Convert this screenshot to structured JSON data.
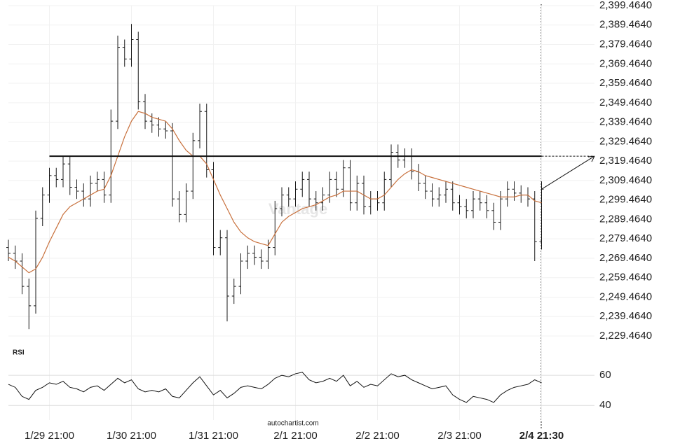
{
  "chart_data": [
    {
      "type": "ohlc",
      "categories": [
        null,
        null,
        null,
        null,
        null,
        null,
        "1/29 21:00",
        null,
        null,
        null,
        null,
        null,
        null,
        null,
        null,
        null,
        null,
        null,
        "1/30 21:00",
        null,
        null,
        null,
        null,
        null,
        null,
        null,
        null,
        null,
        null,
        null,
        "1/31 21:00",
        null,
        null,
        null,
        null,
        null,
        null,
        null,
        null,
        null,
        null,
        null,
        "2/1 21:00",
        null,
        null,
        null,
        null,
        null,
        null,
        null,
        null,
        null,
        null,
        null,
        "2/2 21:00",
        null,
        null,
        null,
        null,
        null,
        null,
        null,
        null,
        null,
        null,
        null,
        "2/3 21:00",
        null,
        null,
        null,
        null,
        null,
        null,
        null,
        null,
        null,
        null,
        null,
        "2/4 21:30"
      ],
      "open": [
        2275,
        2272,
        2268,
        2255,
        2245,
        2290,
        2302,
        2312,
        2310,
        2318,
        2306,
        2304,
        2300,
        2308,
        2310,
        2302,
        2340,
        2378,
        2372,
        2382,
        2350,
        2340,
        2338,
        2336,
        2335,
        2300,
        2292,
        2304,
        2330,
        2345,
        2315,
        2275,
        2280,
        2250,
        2255,
        2268,
        2272,
        2270,
        2268,
        2275,
        2295,
        2302,
        2300,
        2305,
        2310,
        2300,
        2298,
        2302,
        2310,
        2305,
        2316,
        2298,
        2308,
        2296,
        2300,
        2298,
        2310,
        2324,
        2320,
        2322,
        2314,
        2308,
        2304,
        2300,
        2302,
        2305,
        2298,
        2296,
        2294,
        2300,
        2298,
        2294,
        2288,
        2300,
        2305,
        2303,
        2302,
        2300,
        2278
      ],
      "high": [
        2279,
        2276,
        2272,
        2259,
        2294,
        2306,
        2316,
        2316,
        2322,
        2322,
        2310,
        2308,
        2312,
        2314,
        2314,
        2346,
        2384,
        2382,
        2390,
        2386,
        2354,
        2344,
        2342,
        2340,
        2339,
        2304,
        2308,
        2334,
        2349,
        2349,
        2319,
        2284,
        2284,
        2259,
        2272,
        2276,
        2276,
        2274,
        2279,
        2299,
        2306,
        2306,
        2309,
        2314,
        2314,
        2304,
        2306,
        2314,
        2314,
        2320,
        2320,
        2312,
        2312,
        2304,
        2304,
        2314,
        2328,
        2328,
        2326,
        2326,
        2318,
        2312,
        2308,
        2306,
        2309,
        2309,
        2302,
        2300,
        2304,
        2304,
        2302,
        2298,
        2304,
        2309,
        2309,
        2307,
        2306,
        2304,
        2309
      ],
      "low": [
        2268,
        2264,
        2251,
        2233,
        2241,
        2286,
        2298,
        2306,
        2306,
        2302,
        2300,
        2296,
        2296,
        2304,
        2298,
        2298,
        2336,
        2368,
        2368,
        2346,
        2336,
        2334,
        2332,
        2331,
        2296,
        2288,
        2288,
        2300,
        2326,
        2311,
        2271,
        2271,
        2237,
        2246,
        2251,
        2264,
        2266,
        2264,
        2264,
        2271,
        2291,
        2296,
        2296,
        2301,
        2296,
        2294,
        2294,
        2298,
        2301,
        2301,
        2294,
        2294,
        2292,
        2292,
        2294,
        2294,
        2306,
        2316,
        2316,
        2310,
        2304,
        2300,
        2296,
        2296,
        2298,
        2294,
        2292,
        2290,
        2290,
        2294,
        2290,
        2284,
        2284,
        2296,
        2299,
        2298,
        2296,
        2268,
        2274
      ],
      "close": [
        2272,
        2268,
        2255,
        2245,
        2290,
        2302,
        2312,
        2310,
        2318,
        2306,
        2304,
        2300,
        2308,
        2310,
        2302,
        2340,
        2378,
        2372,
        2382,
        2350,
        2340,
        2338,
        2336,
        2335,
        2300,
        2292,
        2304,
        2330,
        2345,
        2315,
        2275,
        2280,
        2250,
        2255,
        2268,
        2272,
        2270,
        2268,
        2275,
        2295,
        2302,
        2300,
        2305,
        2310,
        2300,
        2298,
        2302,
        2310,
        2305,
        2316,
        2298,
        2308,
        2296,
        2300,
        2298,
        2310,
        2324,
        2320,
        2322,
        2314,
        2308,
        2304,
        2300,
        2302,
        2305,
        2298,
        2296,
        2294,
        2300,
        2298,
        2294,
        2288,
        2300,
        2305,
        2303,
        2302,
        2300,
        2278,
        2305
      ],
      "color": "#1a1a1a",
      "moving_average": {
        "color": "#c8703c",
        "values": [
          2270,
          2268,
          2265,
          2262,
          2264,
          2270,
          2278,
          2285,
          2292,
          2296,
          2298,
          2300,
          2302,
          2304,
          2305,
          2312,
          2322,
          2332,
          2340,
          2345,
          2344,
          2342,
          2341,
          2340,
          2336,
          2330,
          2325,
          2322,
          2322,
          2318,
          2310,
          2302,
          2295,
          2288,
          2283,
          2280,
          2278,
          2277,
          2276,
          2282,
          2288,
          2291,
          2293,
          2295,
          2296,
          2297,
          2299,
          2301,
          2302,
          2304,
          2304,
          2304,
          2302,
          2300,
          2300,
          2302,
          2306,
          2310,
          2313,
          2315,
          2314,
          2312,
          2311,
          2310,
          2309,
          2308,
          2307,
          2306,
          2305,
          2304,
          2303,
          2302,
          2301,
          2301,
          2301,
          2302,
          2302,
          2299,
          2298
        ]
      },
      "resistance": 2322,
      "ylim": [
        2229.464,
        2399.464
      ],
      "yticks": [
        {
          "value": 2399.464,
          "label": "2,399.4640"
        },
        {
          "value": 2389.464,
          "label": "2,389.4640"
        },
        {
          "value": 2379.464,
          "label": "2,379.4640"
        },
        {
          "value": 2369.464,
          "label": "2,369.4640"
        },
        {
          "value": 2359.464,
          "label": "2,359.4640"
        },
        {
          "value": 2349.464,
          "label": "2,349.4640"
        },
        {
          "value": 2339.464,
          "label": "2,339.4640"
        },
        {
          "value": 2329.464,
          "label": "2,329.4640"
        },
        {
          "value": 2319.464,
          "label": "2,319.4640"
        },
        {
          "value": 2309.464,
          "label": "2,309.4640"
        },
        {
          "value": 2299.464,
          "label": "2,299.4640"
        },
        {
          "value": 2289.464,
          "label": "2,289.4640"
        },
        {
          "value": 2279.464,
          "label": "2,279.4640"
        },
        {
          "value": 2269.464,
          "label": "2,269.4640"
        },
        {
          "value": 2259.464,
          "label": "2,259.4640"
        },
        {
          "value": 2249.464,
          "label": "2,249.4640"
        },
        {
          "value": 2239.464,
          "label": "2,239.4640"
        },
        {
          "value": 2229.464,
          "label": "2,229.4640"
        }
      ],
      "grid": true,
      "watermark": "Vantage"
    },
    {
      "type": "line",
      "title": "RSI",
      "color": "#111111",
      "values": [
        54,
        52,
        46,
        44,
        50,
        52,
        55,
        54,
        56,
        52,
        51,
        49,
        52,
        53,
        50,
        54,
        58,
        55,
        57,
        51,
        49,
        50,
        49,
        51,
        46,
        45,
        50,
        55,
        59,
        53,
        47,
        50,
        45,
        48,
        52,
        53,
        52,
        51,
        54,
        58,
        60,
        59,
        61,
        62,
        57,
        55,
        56,
        58,
        56,
        60,
        53,
        56,
        52,
        54,
        53,
        57,
        61,
        59,
        60,
        57,
        55,
        53,
        51,
        52,
        53,
        47,
        44,
        42,
        46,
        45,
        44,
        42,
        47,
        50,
        52,
        53,
        54,
        57,
        55
      ],
      "ylim": [
        35,
        67
      ],
      "yticks": [
        60,
        40
      ],
      "source": "autochartist.com"
    }
  ]
}
